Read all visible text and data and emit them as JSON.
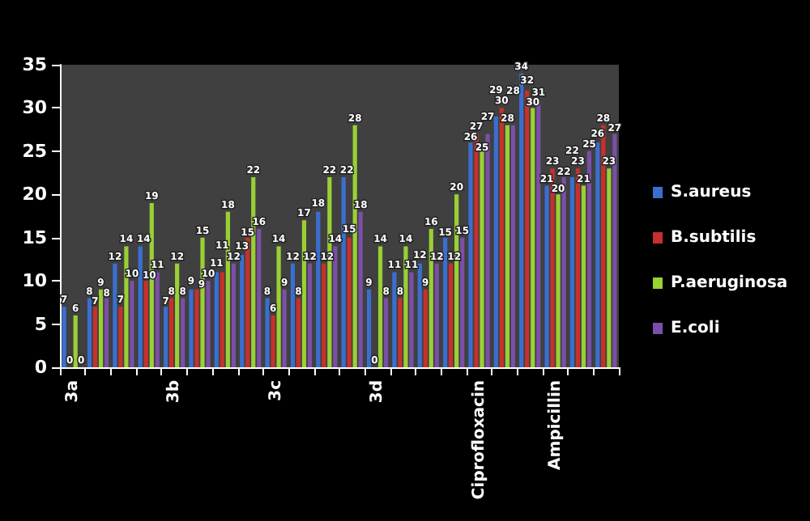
{
  "chart_data": {
    "type": "bar",
    "categories": [
      "3a",
      null,
      null,
      null,
      "3b",
      null,
      null,
      null,
      "3c",
      null,
      null,
      null,
      "3d",
      null,
      null,
      null,
      "Ciprofloxacin",
      null,
      null,
      "Ampicillin",
      null,
      null
    ],
    "series": [
      {
        "name": "S.aureus",
        "color": "#3a6fd0",
        "values": [
          7,
          8,
          12,
          14,
          7,
          9,
          11,
          13,
          8,
          12,
          18,
          22,
          9,
          11,
          12,
          15,
          26,
          29,
          34,
          21,
          22,
          26
        ]
      },
      {
        "name": "B.subtilis",
        "color": "#c8302c",
        "values": [
          0,
          7,
          7,
          10,
          8,
          9,
          11,
          15,
          6,
          8,
          12,
          15,
          0,
          8,
          9,
          12,
          27,
          30,
          32,
          23,
          23,
          28
        ]
      },
      {
        "name": "P.aeruginosa",
        "color": "#9ad034",
        "values": [
          6,
          9,
          14,
          19,
          12,
          15,
          18,
          22,
          14,
          17,
          22,
          28,
          14,
          14,
          16,
          20,
          25,
          28,
          30,
          20,
          21,
          23
        ]
      },
      {
        "name": "E.coli",
        "color": "#7b4fa8",
        "values": [
          0,
          8,
          10,
          11,
          8,
          10,
          12,
          16,
          9,
          12,
          14,
          18,
          8,
          11,
          12,
          15,
          27,
          28,
          31,
          22,
          25,
          27
        ]
      }
    ],
    "ylim": [
      0,
      35
    ],
    "yticks": [
      0,
      5,
      10,
      15,
      20,
      25,
      30,
      35
    ],
    "grid": false,
    "legend": "right",
    "data_labels": true
  }
}
